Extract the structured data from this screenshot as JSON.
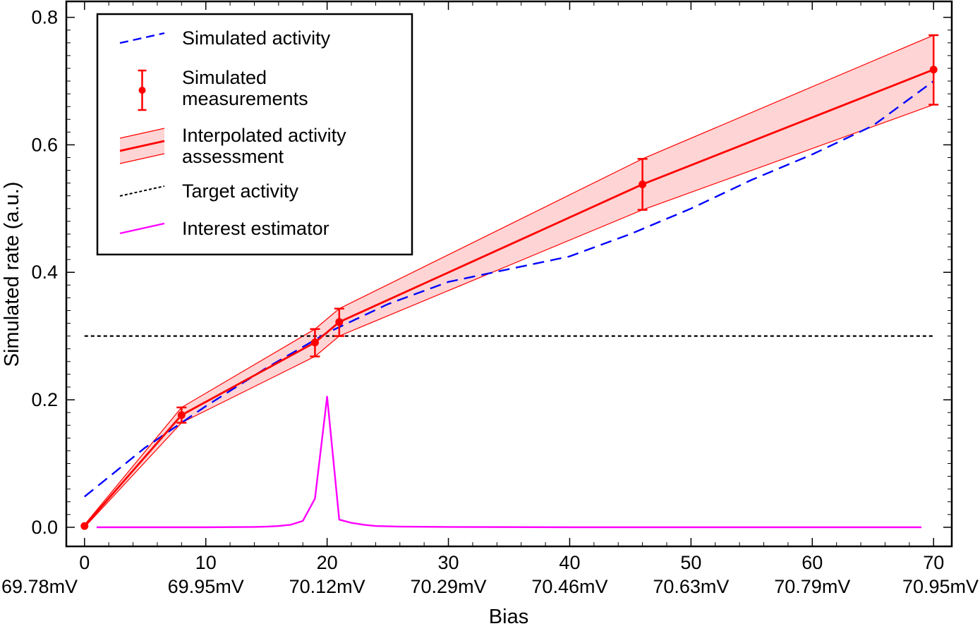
{
  "chart_data": {
    "type": "line",
    "title": "",
    "xlabel": "Bias",
    "ylabel": "Simulated rate (a.u.)",
    "xlim": [
      -1.5,
      71.5
    ],
    "ylim": [
      -0.03,
      0.825
    ],
    "x_ticks": [
      0,
      10,
      20,
      30,
      40,
      50,
      60,
      70
    ],
    "x_tick_labels": [
      "0",
      "10",
      "20",
      "30",
      "40",
      "50",
      "60",
      "70"
    ],
    "x_secondary_tick_labels": [
      "69.78mV",
      "69.95mV",
      "70.12mV",
      "70.29mV",
      "70.46mV",
      "70.63mV",
      "70.79mV",
      "70.95mV"
    ],
    "y_ticks": [
      0.0,
      0.2,
      0.4,
      0.6,
      0.8
    ],
    "y_tick_labels": [
      "0.0",
      "0.2",
      "0.4",
      "0.6",
      "0.8"
    ],
    "grid": false,
    "legend_position": "top-left",
    "series": [
      {
        "name": "Simulated activity",
        "kind": "line",
        "style": "dashed",
        "color": "#0000ff",
        "x": [
          0,
          5,
          10,
          15,
          20,
          25,
          30,
          35,
          40,
          45,
          50,
          55,
          60,
          65,
          70
        ],
        "y": [
          0.048,
          0.125,
          0.19,
          0.25,
          0.305,
          0.35,
          0.385,
          0.405,
          0.425,
          0.46,
          0.5,
          0.545,
          0.585,
          0.63,
          0.7
        ]
      },
      {
        "name": "Simulated measurements",
        "kind": "errorbar",
        "color": "#ff0000",
        "x": [
          0,
          8,
          19,
          21,
          46,
          70
        ],
        "y": [
          0.002,
          0.176,
          0.29,
          0.322,
          0.538,
          0.718
        ],
        "y_low": [
          0.002,
          0.164,
          0.268,
          0.3,
          0.498,
          0.663
        ],
        "y_high": [
          0.002,
          0.188,
          0.311,
          0.343,
          0.578,
          0.772
        ]
      },
      {
        "name": "Interpolated activity assessment",
        "kind": "band",
        "color": "#ff0000",
        "fill": "#ffd4d4",
        "x": [
          0,
          8,
          19,
          21,
          46,
          70
        ],
        "y": [
          0.002,
          0.176,
          0.29,
          0.322,
          0.538,
          0.718
        ],
        "y_low": [
          0.0,
          0.164,
          0.268,
          0.3,
          0.498,
          0.663
        ],
        "y_high": [
          0.004,
          0.188,
          0.311,
          0.343,
          0.578,
          0.772
        ]
      },
      {
        "name": "Target activity",
        "kind": "line",
        "style": "dotted",
        "color": "#000000",
        "x": [
          0,
          70
        ],
        "y": [
          0.3,
          0.3
        ]
      },
      {
        "name": "Interest estimator",
        "kind": "line",
        "style": "solid",
        "color": "#ff00ff",
        "x": [
          1,
          10,
          14,
          15,
          16,
          17,
          18,
          19,
          20,
          21,
          22,
          23,
          24,
          26,
          30,
          40,
          69
        ],
        "y": [
          0.0,
          0.0,
          0.0005,
          0.001,
          0.002,
          0.004,
          0.01,
          0.045,
          0.205,
          0.012,
          0.007,
          0.004,
          0.002,
          0.001,
          0.0005,
          0.0,
          0.0
        ]
      }
    ],
    "legend": [
      {
        "label_lines": [
          "Simulated activity"
        ],
        "symbol": "dashed-line",
        "color": "#0000ff"
      },
      {
        "label_lines": [
          "Simulated",
          "measurements"
        ],
        "symbol": "errorbar",
        "color": "#ff0000"
      },
      {
        "label_lines": [
          "Interpolated activity",
          "assessment"
        ],
        "symbol": "band",
        "color": "#ff0000",
        "fill": "#ffd4d4"
      },
      {
        "label_lines": [
          "Target activity"
        ],
        "symbol": "dotted-line",
        "color": "#000000"
      },
      {
        "label_lines": [
          "Interest estimator"
        ],
        "symbol": "solid-line",
        "color": "#ff00ff"
      }
    ]
  }
}
